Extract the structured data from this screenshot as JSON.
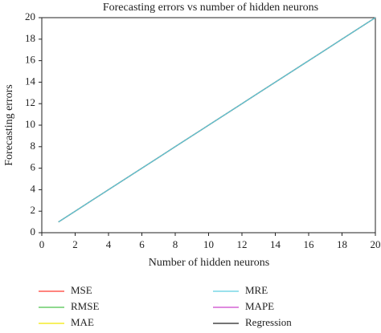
{
  "chart_data": {
    "type": "line",
    "title": "Forecasting errors vs number of hidden neurons",
    "x_label": "Number of hidden neurons",
    "y_label": "Forecasting errors",
    "x": [
      1,
      2,
      3,
      4,
      5,
      6,
      7,
      8,
      9,
      10,
      11,
      12,
      13,
      14,
      15,
      16,
      17,
      18,
      19,
      20
    ],
    "series": [
      {
        "name": "MSE",
        "color": "#ff3b30",
        "values": [
          1,
          2,
          3,
          4,
          5,
          6,
          7,
          8,
          9,
          10,
          11,
          12,
          13,
          14,
          15,
          16,
          17,
          18,
          19,
          20
        ]
      },
      {
        "name": "RMSE",
        "color": "#4cc24c",
        "values": [
          1,
          2,
          3,
          4,
          5,
          6,
          7,
          8,
          9,
          10,
          11,
          12,
          13,
          14,
          15,
          16,
          17,
          18,
          19,
          20
        ]
      },
      {
        "name": "MAE",
        "color": "#f2e600",
        "values": [
          1,
          2,
          3,
          4,
          5,
          6,
          7,
          8,
          9,
          10,
          11,
          12,
          13,
          14,
          15,
          16,
          17,
          18,
          19,
          20
        ]
      },
      {
        "name": "MRE",
        "color": "#5ecfe0",
        "values": [
          1,
          2,
          3,
          4,
          5,
          6,
          7,
          8,
          9,
          10,
          11,
          12,
          13,
          14,
          15,
          16,
          17,
          18,
          19,
          20
        ]
      },
      {
        "name": "MAPE",
        "color": "#cc44cc",
        "values": [
          1,
          2,
          3,
          4,
          5,
          6,
          7,
          8,
          9,
          10,
          11,
          12,
          13,
          14,
          15,
          16,
          17,
          18,
          19,
          20
        ]
      },
      {
        "name": "Regression",
        "color": "#222222",
        "values": [
          1,
          2,
          3,
          4,
          5,
          6,
          7,
          8,
          9,
          10,
          11,
          12,
          13,
          14,
          15,
          16,
          17,
          18,
          19,
          20
        ]
      }
    ],
    "top_series": "MRE",
    "xlim": [
      0,
      20
    ],
    "xticks": [
      0,
      2,
      4,
      6,
      8,
      10,
      12,
      14,
      16,
      18,
      20
    ],
    "ylim": [
      0,
      20
    ],
    "yticks": [
      0,
      2,
      4,
      6,
      8,
      10,
      12,
      14,
      16,
      18,
      20
    ]
  }
}
